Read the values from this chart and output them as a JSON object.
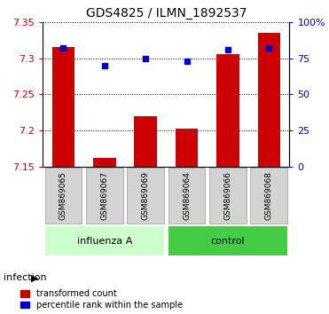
{
  "title": "GDS4825 / ILMN_1892537",
  "samples": [
    "GSM869065",
    "GSM869067",
    "GSM869069",
    "GSM869064",
    "GSM869066",
    "GSM869068"
  ],
  "groups": [
    "influenza A",
    "influenza A",
    "influenza A",
    "control",
    "control",
    "control"
  ],
  "group_label": "infection",
  "bar_values": [
    7.315,
    7.162,
    7.22,
    7.202,
    7.305,
    7.335
  ],
  "percentile_values": [
    82,
    70,
    75,
    73,
    81,
    82
  ],
  "ylim": [
    7.15,
    7.35
  ],
  "yticks": [
    7.15,
    7.2,
    7.25,
    7.3,
    7.35
  ],
  "right_yticks": [
    0,
    25,
    50,
    75,
    100
  ],
  "right_ylim": [
    0,
    100
  ],
  "bar_color": "#cc0000",
  "dot_color": "#0000cc",
  "bar_baseline": 7.15,
  "influenza_color": "#ccffcc",
  "control_color": "#44cc44",
  "left_label_color": "#cc0000",
  "right_label_color": "#0000cc"
}
